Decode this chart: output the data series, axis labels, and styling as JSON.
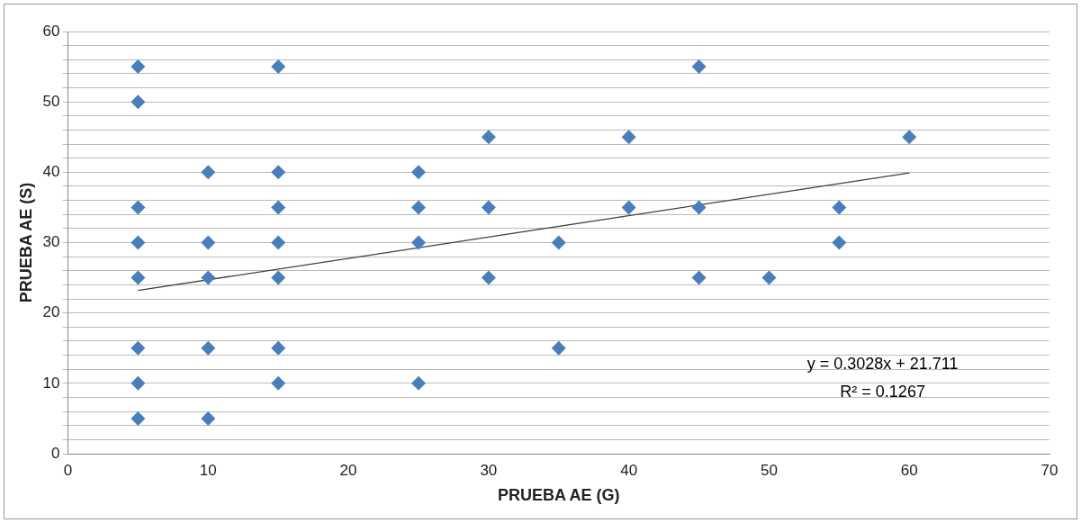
{
  "chart_data": {
    "type": "scatter",
    "xlabel": "PRUEBA AE (G)",
    "ylabel": "PRUEBA AE (S)",
    "series": [
      {
        "marker": "diamond",
        "color": "#4a7ebb",
        "x": [
          5,
          5,
          5,
          5,
          5,
          5,
          5,
          5,
          10,
          10,
          10,
          10,
          10,
          15,
          15,
          15,
          15,
          15,
          15,
          15,
          25,
          25,
          25,
          25,
          30,
          30,
          30,
          35,
          35,
          40,
          40,
          45,
          45,
          45,
          50,
          55,
          55,
          60
        ],
        "values": [
          55,
          50,
          35,
          30,
          25,
          15,
          10,
          5,
          40,
          30,
          25,
          15,
          5,
          55,
          40,
          35,
          30,
          25,
          15,
          10,
          40,
          35,
          30,
          10,
          45,
          35,
          25,
          30,
          15,
          45,
          35,
          55,
          35,
          25,
          25,
          35,
          30,
          45
        ]
      },
      {
        "type": "line",
        "marker": "none",
        "color": "#404040",
        "x": [
          5,
          60
        ],
        "values": [
          23.2,
          39.9
        ]
      }
    ],
    "xlim": [
      0,
      70
    ],
    "xticks": [
      0,
      10,
      20,
      30,
      40,
      50,
      60,
      70
    ],
    "ylim": [
      0,
      60
    ],
    "yticks": [
      0,
      {
        "value": 2,
        "label": null
      },
      {
        "value": 4,
        "label": null
      },
      {
        "value": 6,
        "label": null
      },
      {
        "value": 8,
        "label": null
      },
      10,
      {
        "value": 12,
        "label": null
      },
      {
        "value": 14,
        "label": null
      },
      {
        "value": 16,
        "label": null
      },
      {
        "value": 18,
        "label": null
      },
      20,
      {
        "value": 22,
        "label": null
      },
      {
        "value": 24,
        "label": null
      },
      {
        "value": 26,
        "label": null
      },
      {
        "value": 28,
        "label": null
      },
      30,
      {
        "value": 32,
        "label": null
      },
      {
        "value": 34,
        "label": null
      },
      {
        "value": 36,
        "label": null
      },
      {
        "value": 38,
        "label": null
      },
      40,
      {
        "value": 42,
        "label": null
      },
      {
        "value": 44,
        "label": null
      },
      {
        "value": 46,
        "label": null
      },
      {
        "value": 48,
        "label": null
      },
      50,
      {
        "value": 52,
        "label": null
      },
      {
        "value": 54,
        "label": null
      },
      {
        "value": 56,
        "label": null
      },
      {
        "value": 58,
        "label": null
      },
      60
    ],
    "grid": "y",
    "legend": false,
    "annotations": [
      "y = 0.3028x + 21.711",
      "R² = 0.1267"
    ]
  }
}
